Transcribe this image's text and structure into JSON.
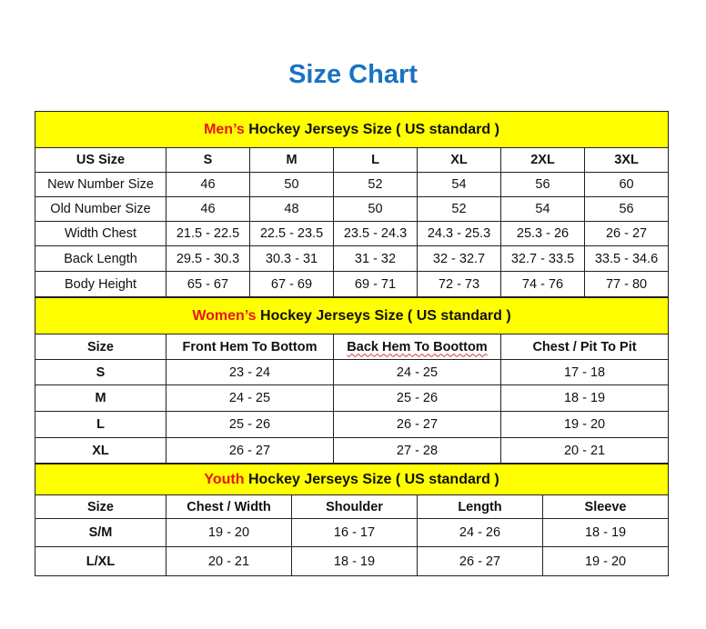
{
  "title": "Size Chart",
  "colors": {
    "title": "#1a72c4",
    "section_header_bg": "#ffff00",
    "section_prefix": "#e8141b"
  },
  "men": {
    "prefix": "Men’s",
    "header": " Hockey Jerseys Size ( US standard )",
    "columns": [
      "US Size",
      "S",
      "M",
      "L",
      "XL",
      "2XL",
      "3XL"
    ],
    "rows": [
      [
        "New Number Size",
        "46",
        "50",
        "52",
        "54",
        "56",
        "60"
      ],
      [
        "Old Number Size",
        "46",
        "48",
        "50",
        "52",
        "54",
        "56"
      ],
      [
        "Width Chest",
        "21.5 - 22.5",
        "22.5 - 23.5",
        "23.5 - 24.3",
        "24.3 - 25.3",
        "25.3 - 26",
        "26 - 27"
      ],
      [
        "Back Length",
        "29.5 - 30.3",
        "30.3 - 31",
        "31 - 32",
        "32 - 32.7",
        "32.7 - 33.5",
        "33.5 - 34.6"
      ],
      [
        "Body Height",
        "65 - 67",
        "67 - 69",
        "69 - 71",
        "72 - 73",
        "74 - 76",
        "77 - 80"
      ]
    ]
  },
  "women": {
    "prefix": "Women’s",
    "header": " Hockey Jerseys Size ( US standard )",
    "columns": [
      "Size",
      "Front Hem To Bottom",
      "Back Hem To Boottom",
      "Chest / Pit To Pit"
    ],
    "rows": [
      [
        "S",
        "23 - 24",
        "24 - 25",
        "17 - 18"
      ],
      [
        "M",
        "24 - 25",
        "25 - 26",
        "18 - 19"
      ],
      [
        "L",
        "25 - 26",
        "26 - 27",
        "19 - 20"
      ],
      [
        "XL",
        "26 - 27",
        "27 - 28",
        "20 - 21"
      ]
    ]
  },
  "youth": {
    "prefix": "Youth",
    "header": " Hockey Jerseys Size ( US standard )",
    "columns": [
      "Size",
      "Chest / Width",
      "Shoulder",
      "Length",
      "Sleeve"
    ],
    "rows": [
      [
        "S/M",
        "19 - 20",
        "16 - 17",
        "24 - 26",
        "18 - 19"
      ],
      [
        "L/XL",
        "20 - 21",
        "18 - 19",
        "26 - 27",
        "19 - 20"
      ]
    ]
  }
}
